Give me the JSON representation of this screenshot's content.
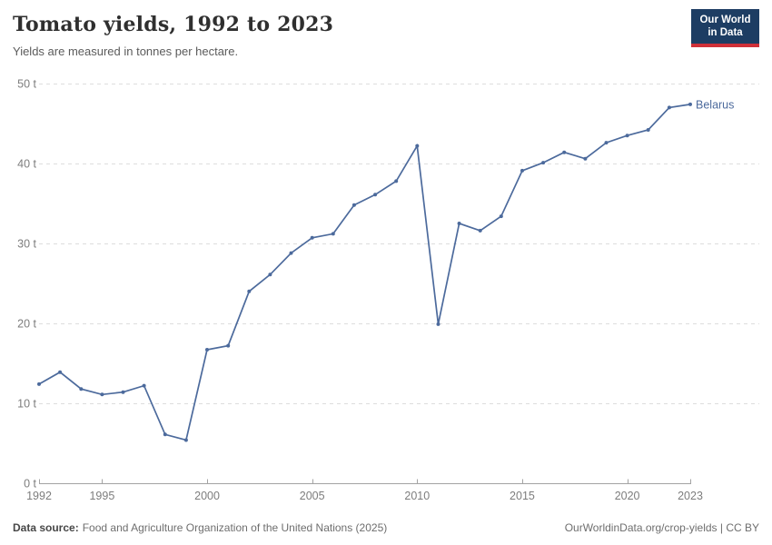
{
  "header": {
    "title": "Tomato yields, 1992 to 2023",
    "subtitle": "Yields are measured in tonnes per hectare."
  },
  "logo": {
    "line1": "Our World",
    "line2": "in Data",
    "bg_color": "#1d3d63",
    "bar_color": "#cf3038"
  },
  "chart_data": {
    "type": "line",
    "title": "Tomato yields, 1992 to 2023",
    "unit": "tonnes per hectare",
    "xlabel": "",
    "ylabel": "",
    "xlim": [
      1992,
      2023
    ],
    "ylim": [
      0,
      50
    ],
    "xticks": [
      1992,
      1995,
      2000,
      2005,
      2010,
      2015,
      2020,
      2023
    ],
    "yticks": [
      0,
      10,
      20,
      30,
      40,
      50
    ],
    "ytick_suffix": " t",
    "grid": "horizontal-dashed",
    "legend_position": "end-of-line-label",
    "x": [
      1992,
      1993,
      1994,
      1995,
      1996,
      1997,
      1998,
      1999,
      2000,
      2001,
      2002,
      2003,
      2004,
      2005,
      2006,
      2007,
      2008,
      2009,
      2010,
      2011,
      2012,
      2013,
      2014,
      2015,
      2016,
      2017,
      2018,
      2019,
      2020,
      2021,
      2022,
      2023
    ],
    "series": [
      {
        "name": "Belarus",
        "color": "#4C6A9C",
        "values": [
          12.4,
          13.9,
          11.8,
          11.1,
          11.4,
          12.2,
          6.1,
          5.4,
          16.7,
          17.2,
          24.0,
          26.1,
          28.8,
          30.7,
          31.2,
          34.8,
          36.1,
          37.8,
          42.2,
          19.9,
          32.5,
          31.6,
          33.4,
          39.1,
          40.1,
          41.4,
          40.6,
          42.6,
          43.5,
          44.2,
          47.0,
          47.4
        ]
      }
    ]
  },
  "footer": {
    "datasource_label": "Data source:",
    "datasource_text": "Food and Agriculture Organization of the United Nations (2025)",
    "credit": "OurWorldinData.org/crop-yields | CC BY"
  }
}
